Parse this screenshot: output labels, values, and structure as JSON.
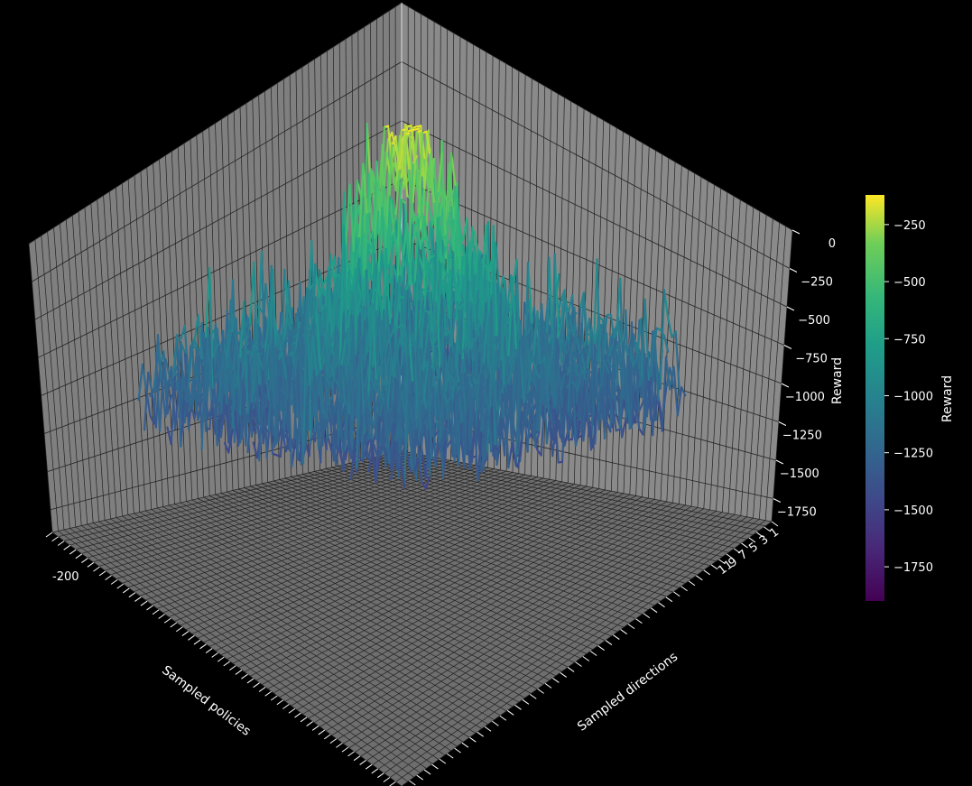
{
  "chart_data": {
    "type": "surface3d",
    "xlabel": "Sampled policies",
    "ylabel": "Sampled directions",
    "zlabel": "Reward",
    "colorbar_label": "Reward",
    "colormap": "viridis",
    "background": "#000000",
    "pane_color": "#7f7f7f",
    "grid": true,
    "zlim": [
      -1900,
      0
    ],
    "z_ticks": [
      0,
      -250,
      -500,
      -750,
      -1000,
      -1250,
      -1500,
      -1750
    ],
    "z_tick_labels": [
      "0",
      "−250",
      "−500",
      "−750",
      "−1000",
      "−1250",
      "−1500",
      "−1750"
    ],
    "colorbar_range": [
      -1900,
      -120
    ],
    "colorbar_ticks": [
      -250,
      -500,
      -750,
      -1000,
      -1250,
      -1500,
      -1750
    ],
    "colorbar_tick_labels": [
      "−250",
      "−500",
      "−750",
      "−1000",
      "−1250",
      "−1500",
      "−1750"
    ],
    "x_first_tick_label": "-200",
    "y_last_tick_label": "1",
    "y_tick_labels_visible": [
      "1",
      "3",
      "5",
      "7",
      "9",
      "11"
    ],
    "surface": {
      "peak_reward": -150,
      "min_reward": -1900,
      "typical_reward": -1250,
      "shape": "noisy ridge with central peak near reward −200"
    }
  }
}
